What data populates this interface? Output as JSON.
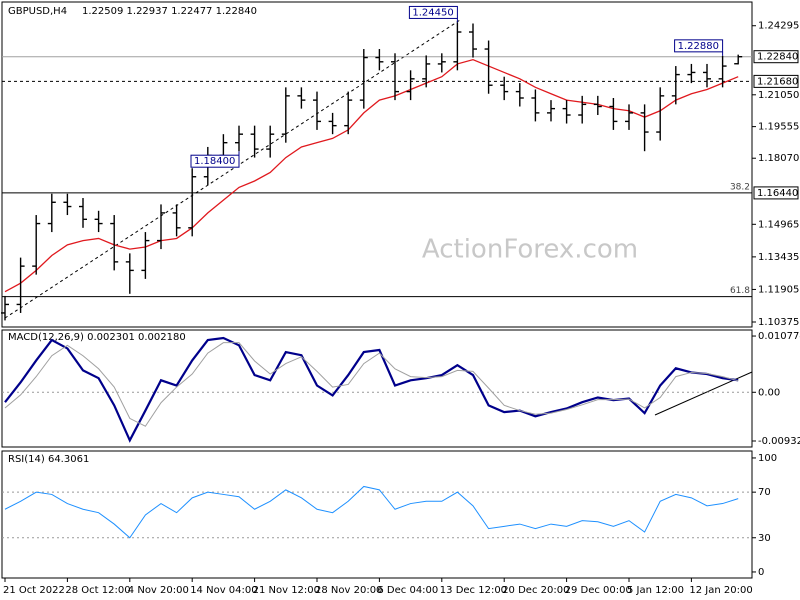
{
  "chart_data": [
    {
      "type": "ohlc",
      "title": "GBPUSD,H4",
      "subtitle": "1.22509 1.22937 1.22477 1.22840",
      "watermark": "ActionForex.com",
      "categories": [
        "21 Oct 2022",
        null,
        null,
        null,
        "28 Oct 12:00",
        null,
        null,
        null,
        "4 Nov 20:00",
        null,
        null,
        null,
        "14 Nov 04:00",
        null,
        null,
        null,
        "21 Nov 12:00",
        null,
        null,
        null,
        "28 Nov 20:00",
        null,
        null,
        null,
        "6 Dec 04:00",
        null,
        null,
        null,
        "13 Dec 12:00",
        null,
        null,
        null,
        "20 Dec 20:00",
        null,
        null,
        null,
        "29 Dec 00:00",
        null,
        null,
        null,
        "5 Jan 12:00",
        null,
        null,
        null,
        "12 Jan 20:00",
        null,
        null,
        null
      ],
      "open": [
        1.108,
        1.112,
        1.13,
        1.15,
        1.16,
        1.158,
        1.152,
        1.15,
        1.132,
        1.128,
        1.142,
        1.155,
        1.148,
        1.172,
        1.182,
        1.188,
        1.192,
        1.185,
        1.192,
        1.21,
        1.208,
        1.198,
        1.196,
        1.208,
        1.228,
        1.226,
        1.212,
        1.218,
        1.225,
        1.226,
        1.24,
        1.232,
        1.215,
        1.212,
        1.209,
        1.202,
        1.204,
        1.201,
        1.206,
        1.205,
        1.198,
        1.202,
        1.193,
        1.21,
        1.22,
        1.221,
        1.218,
        1.22509
      ],
      "high": [
        1.116,
        1.134,
        1.154,
        1.164,
        1.164,
        1.162,
        1.156,
        1.154,
        1.136,
        1.146,
        1.159,
        1.159,
        1.176,
        1.186,
        1.192,
        1.196,
        1.196,
        1.196,
        1.214,
        1.214,
        1.212,
        1.202,
        1.212,
        1.232,
        1.232,
        1.23,
        1.222,
        1.229,
        1.23,
        1.2445,
        1.244,
        1.236,
        1.219,
        1.216,
        1.213,
        1.208,
        1.208,
        1.21,
        1.21,
        1.209,
        1.206,
        1.206,
        1.214,
        1.224,
        1.225,
        1.225,
        1.2288,
        1.22937
      ],
      "low": [
        1.1045,
        1.108,
        1.126,
        1.146,
        1.154,
        1.148,
        1.146,
        1.128,
        1.117,
        1.124,
        1.138,
        1.144,
        1.144,
        1.168,
        1.178,
        1.184,
        1.181,
        1.181,
        1.188,
        1.204,
        1.194,
        1.192,
        1.192,
        1.204,
        1.222,
        1.208,
        1.208,
        1.214,
        1.221,
        1.222,
        1.228,
        1.211,
        1.208,
        1.205,
        1.198,
        1.198,
        1.197,
        1.197,
        1.201,
        1.194,
        1.194,
        1.184,
        1.189,
        1.206,
        1.216,
        1.214,
        1.214,
        1.22477
      ],
      "close": [
        1.112,
        1.13,
        1.15,
        1.16,
        1.158,
        1.152,
        1.15,
        1.132,
        1.128,
        1.142,
        1.155,
        1.148,
        1.172,
        1.182,
        1.188,
        1.192,
        1.185,
        1.192,
        1.21,
        1.208,
        1.198,
        1.196,
        1.208,
        1.228,
        1.226,
        1.212,
        1.218,
        1.225,
        1.226,
        1.24,
        1.232,
        1.215,
        1.212,
        1.209,
        1.202,
        1.204,
        1.201,
        1.206,
        1.205,
        1.198,
        1.202,
        1.193,
        1.21,
        1.22,
        1.221,
        1.218,
        1.224,
        1.2284
      ],
      "color": "#000000",
      "moving_average": {
        "color": "#e0191e",
        "values": [
          1.118,
          1.122,
          1.128,
          1.135,
          1.14,
          1.142,
          1.143,
          1.14,
          1.138,
          1.139,
          1.142,
          1.143,
          1.148,
          1.155,
          1.161,
          1.167,
          1.17,
          1.174,
          1.181,
          1.186,
          1.188,
          1.19,
          1.194,
          1.202,
          1.208,
          1.21,
          1.213,
          1.216,
          1.219,
          1.225,
          1.227,
          1.224,
          1.221,
          1.218,
          1.214,
          1.211,
          1.208,
          1.207,
          1.206,
          1.204,
          1.203,
          1.2,
          1.203,
          1.208,
          1.211,
          1.213,
          1.216,
          1.219
        ]
      },
      "ylim": [
        1.1014,
        1.2541
      ],
      "yticks": [
        1.24295,
        {
          "value": 1.2105,
          "label": "1.21050"
        },
        1.19555,
        {
          "value": 1.1807,
          "label": "1.18070"
        },
        1.14965,
        1.13435,
        1.11905,
        1.10375
      ],
      "levels": [
        {
          "value": 1.2284,
          "label": "1.22840",
          "style": "solid",
          "color": "#a0a0a0"
        },
        {
          "value": 1.2168,
          "label": "1.21680",
          "style": "dashed",
          "color": "#000000"
        },
        {
          "value": 1.1644,
          "label": "1.16440",
          "style": "solid",
          "color": "#000000",
          "fib": "38.2"
        },
        {
          "value": 1.1157,
          "style": "solid",
          "color": "#000000",
          "fib": "61.8"
        }
      ],
      "annotations": [
        {
          "label": "1.24450",
          "value": 1.2445,
          "at": "high"
        },
        {
          "label": "1.22880",
          "value": 1.2288,
          "at": "high"
        },
        {
          "label": "1.18400",
          "value": 1.184,
          "at": "low"
        }
      ]
    },
    {
      "type": "line",
      "title": "MACD(12,26,9) 0.002301 0.002180",
      "series": [
        {
          "color": "#00008b",
          "width": 2.2,
          "values": [
            -0.0019,
            0.0019,
            0.0061,
            0.01,
            0.0084,
            0.0042,
            0.0027,
            -0.0025,
            -0.0092,
            -0.0035,
            0.0023,
            0.0013,
            0.0061,
            0.01,
            0.0104,
            0.009,
            0.0033,
            0.0023,
            0.0077,
            0.0071,
            0.0013,
            -0.0006,
            0.0033,
            0.0077,
            0.0081,
            0.0013,
            0.0023,
            0.0027,
            0.0033,
            0.0052,
            0.0033,
            -0.0025,
            -0.0038,
            -0.0035,
            -0.0046,
            -0.0038,
            -0.0031,
            -0.0019,
            -0.001,
            -0.0015,
            -0.0012,
            -0.004,
            0.0013,
            0.0046,
            0.0038,
            0.0035,
            0.0027,
            0.0023
          ]
        },
        {
          "color": "#a0a0a0",
          "width": 1,
          "values": [
            -0.003,
            -0.0005,
            0.003,
            0.007,
            0.009,
            0.007,
            0.0045,
            0.001,
            -0.005,
            -0.0065,
            -0.002,
            0.001,
            0.0035,
            0.0075,
            0.0095,
            0.0095,
            0.006,
            0.0035,
            0.0055,
            0.0068,
            0.004,
            0.001,
            0.0015,
            0.0055,
            0.0075,
            0.0045,
            0.003,
            0.0028,
            0.003,
            0.0042,
            0.004,
            0.0008,
            -0.0025,
            -0.0035,
            -0.0042,
            -0.004,
            -0.0033,
            -0.0024,
            -0.0014,
            -0.0014,
            -0.0013,
            -0.003,
            -0.001,
            0.003,
            0.0038,
            0.0036,
            0.003,
            0.0022
          ]
        }
      ],
      "ylim": [
        -0.01048,
        0.01193
      ],
      "yticks": [
        0.010774,
        {
          "value": 0,
          "label": "0.00"
        },
        -0.009328
      ],
      "levels": [
        0
      ]
    },
    {
      "type": "line",
      "title": "RSI(14) 64.3061",
      "series": [
        {
          "color": "#1e90ff",
          "width": 1,
          "values": [
            55,
            62,
            70,
            68,
            60,
            55,
            52,
            42,
            30,
            50,
            60,
            52,
            65,
            70,
            68,
            66,
            55,
            62,
            72,
            65,
            55,
            52,
            62,
            75,
            72,
            55,
            60,
            62,
            62,
            70,
            58,
            38,
            40,
            42,
            38,
            42,
            40,
            45,
            44,
            40,
            45,
            35,
            62,
            68,
            65,
            58,
            60,
            64.3061
          ]
        }
      ],
      "ylim": [
        -5.3,
        106.1
      ],
      "yticks": [
        100,
        70,
        30,
        0
      ],
      "levels": [
        70,
        30
      ]
    }
  ]
}
